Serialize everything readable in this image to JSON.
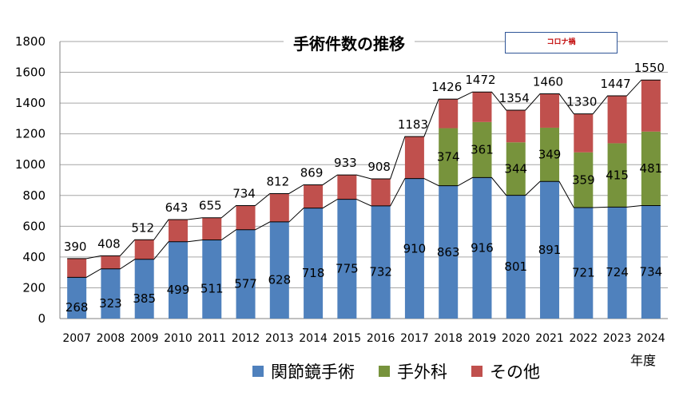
{
  "chart_data": {
    "type": "bar",
    "stacked": true,
    "title": "手術件数の推移",
    "annotation": "コロナ禍",
    "xlabel": "年度",
    "ylabel": "",
    "ylim": [
      0,
      1800
    ],
    "yticks": [
      0,
      200,
      400,
      600,
      800,
      1000,
      1200,
      1400,
      1600,
      1800
    ],
    "grid": true,
    "legend_position": "bottom",
    "categories": [
      "2007",
      "2008",
      "2009",
      "2010",
      "2011",
      "2012",
      "2013",
      "2014",
      "2015",
      "2016",
      "2017",
      "2018",
      "2019",
      "2020",
      "2021",
      "2022",
      "2023",
      "2024"
    ],
    "series": [
      {
        "name": "関節鏡手術",
        "color": "#4f81bd",
        "values": [
          268,
          323,
          385,
          499,
          511,
          577,
          628,
          718,
          775,
          732,
          910,
          863,
          916,
          801,
          891,
          721,
          724,
          734
        ]
      },
      {
        "name": "手外科",
        "color": "#77933c",
        "values": [
          0,
          0,
          0,
          0,
          0,
          0,
          0,
          0,
          0,
          0,
          0,
          374,
          361,
          344,
          349,
          359,
          415,
          481
        ]
      },
      {
        "name": "その他",
        "color": "#c0504d",
        "values": [
          122,
          85,
          127,
          144,
          144,
          157,
          184,
          151,
          158,
          176,
          273,
          189,
          195,
          209,
          220,
          250,
          308,
          335
        ]
      }
    ],
    "totals": [
      390,
      408,
      512,
      643,
      655,
      734,
      812,
      869,
      933,
      908,
      1183,
      1426,
      1472,
      1354,
      1460,
      1330,
      1447,
      1550
    ]
  }
}
